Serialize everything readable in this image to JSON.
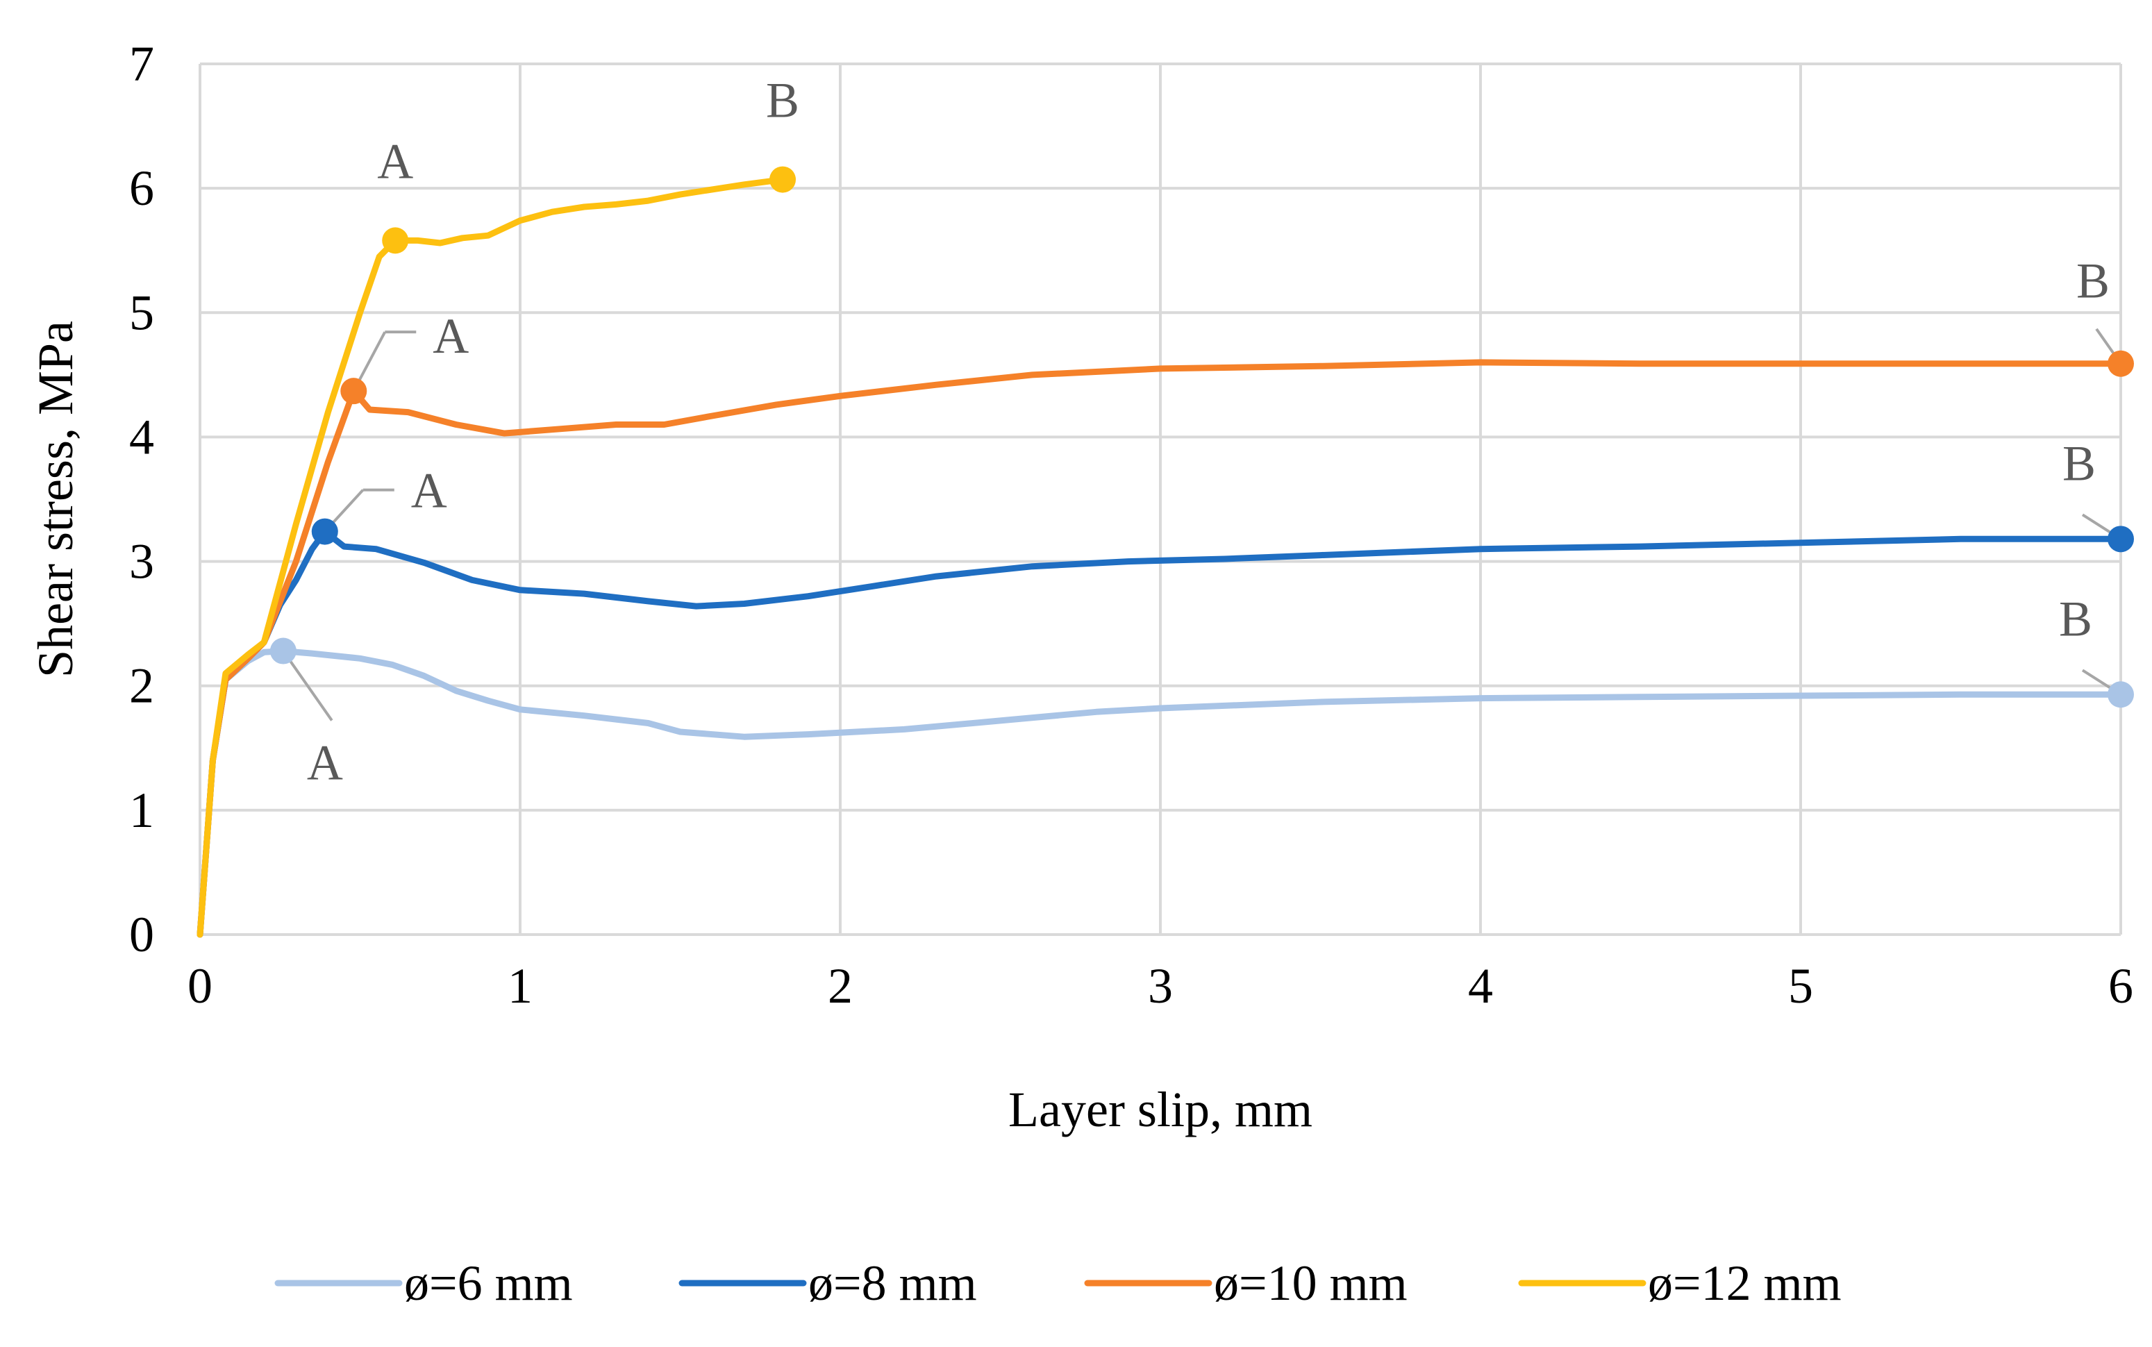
{
  "chart_data": {
    "type": "line",
    "title": "",
    "xlabel": "Layer slip, mm",
    "ylabel": "Shear stress, MPa",
    "xlim": [
      0,
      6
    ],
    "ylim": [
      0,
      7
    ],
    "xticks": [
      0,
      1,
      2,
      3,
      4,
      5,
      6
    ],
    "yticks": [
      0,
      1,
      2,
      3,
      4,
      5,
      6,
      7
    ],
    "xtick_labels": [
      "0",
      "1",
      "2",
      "3",
      "4",
      "5",
      "6"
    ],
    "ytick_labels": [
      "0",
      "1",
      "2",
      "3",
      "4",
      "5",
      "6",
      "7"
    ],
    "grid": true,
    "legend_position": "bottom",
    "series": [
      {
        "name": "ø=6 mm",
        "color": "#A9C4E6",
        "points": [
          [
            0,
            0
          ],
          [
            0.04,
            1.4
          ],
          [
            0.08,
            2.05
          ],
          [
            0.15,
            2.2
          ],
          [
            0.2,
            2.27
          ],
          [
            0.26,
            2.28
          ],
          [
            0.35,
            2.26
          ],
          [
            0.5,
            2.22
          ],
          [
            0.6,
            2.17
          ],
          [
            0.7,
            2.08
          ],
          [
            0.8,
            1.96
          ],
          [
            0.9,
            1.88
          ],
          [
            1.0,
            1.81
          ],
          [
            1.2,
            1.76
          ],
          [
            1.4,
            1.7
          ],
          [
            1.5,
            1.63
          ],
          [
            1.7,
            1.59
          ],
          [
            1.9,
            1.61
          ],
          [
            2.2,
            1.65
          ],
          [
            2.5,
            1.72
          ],
          [
            2.8,
            1.79
          ],
          [
            3.0,
            1.82
          ],
          [
            3.5,
            1.87
          ],
          [
            4.0,
            1.9
          ],
          [
            4.5,
            1.91
          ],
          [
            5.0,
            1.92
          ],
          [
            5.5,
            1.93
          ],
          [
            6.0,
            1.93
          ]
        ],
        "markers": [
          {
            "label": "A",
            "x": 0.26,
            "y": 2.28
          },
          {
            "label": "B",
            "x": 6.0,
            "y": 1.93
          }
        ]
      },
      {
        "name": "ø=8 mm",
        "color": "#1F6EC2",
        "points": [
          [
            0,
            0
          ],
          [
            0.04,
            1.4
          ],
          [
            0.08,
            2.05
          ],
          [
            0.15,
            2.22
          ],
          [
            0.2,
            2.35
          ],
          [
            0.25,
            2.65
          ],
          [
            0.3,
            2.85
          ],
          [
            0.35,
            3.1
          ],
          [
            0.39,
            3.24
          ],
          [
            0.45,
            3.12
          ],
          [
            0.55,
            3.1
          ],
          [
            0.7,
            2.99
          ],
          [
            0.85,
            2.85
          ],
          [
            1.0,
            2.77
          ],
          [
            1.2,
            2.74
          ],
          [
            1.4,
            2.68
          ],
          [
            1.55,
            2.64
          ],
          [
            1.7,
            2.66
          ],
          [
            1.9,
            2.72
          ],
          [
            2.1,
            2.8
          ],
          [
            2.3,
            2.88
          ],
          [
            2.6,
            2.96
          ],
          [
            2.9,
            3.0
          ],
          [
            3.2,
            3.02
          ],
          [
            3.5,
            3.05
          ],
          [
            4.0,
            3.1
          ],
          [
            4.5,
            3.12
          ],
          [
            5.0,
            3.15
          ],
          [
            5.5,
            3.18
          ],
          [
            6.0,
            3.18
          ]
        ],
        "markers": [
          {
            "label": "A",
            "x": 0.39,
            "y": 3.24
          },
          {
            "label": "B",
            "x": 6.0,
            "y": 3.18
          }
        ]
      },
      {
        "name": "ø=10 mm",
        "color": "#F58129",
        "points": [
          [
            0,
            0
          ],
          [
            0.04,
            1.4
          ],
          [
            0.08,
            2.05
          ],
          [
            0.15,
            2.22
          ],
          [
            0.2,
            2.35
          ],
          [
            0.3,
            3.0
          ],
          [
            0.4,
            3.8
          ],
          [
            0.48,
            4.37
          ],
          [
            0.53,
            4.22
          ],
          [
            0.65,
            4.2
          ],
          [
            0.8,
            4.1
          ],
          [
            0.95,
            4.03
          ],
          [
            1.1,
            4.06
          ],
          [
            1.3,
            4.1
          ],
          [
            1.45,
            4.1
          ],
          [
            1.6,
            4.17
          ],
          [
            1.8,
            4.26
          ],
          [
            2.0,
            4.33
          ],
          [
            2.3,
            4.42
          ],
          [
            2.6,
            4.5
          ],
          [
            3.0,
            4.55
          ],
          [
            3.5,
            4.57
          ],
          [
            4.0,
            4.6
          ],
          [
            4.5,
            4.59
          ],
          [
            5.0,
            4.59
          ],
          [
            5.5,
            4.59
          ],
          [
            6.0,
            4.59
          ]
        ],
        "markers": [
          {
            "label": "A",
            "x": 0.48,
            "y": 4.37
          },
          {
            "label": "B",
            "x": 6.0,
            "y": 4.59
          }
        ]
      },
      {
        "name": "ø=12 mm",
        "color": "#FDC010",
        "points": [
          [
            0,
            0
          ],
          [
            0.04,
            1.4
          ],
          [
            0.08,
            2.1
          ],
          [
            0.15,
            2.25
          ],
          [
            0.2,
            2.35
          ],
          [
            0.3,
            3.3
          ],
          [
            0.4,
            4.2
          ],
          [
            0.5,
            5.0
          ],
          [
            0.56,
            5.45
          ],
          [
            0.61,
            5.58
          ],
          [
            0.68,
            5.58
          ],
          [
            0.75,
            5.56
          ],
          [
            0.82,
            5.6
          ],
          [
            0.9,
            5.62
          ],
          [
            1.0,
            5.74
          ],
          [
            1.1,
            5.81
          ],
          [
            1.2,
            5.85
          ],
          [
            1.3,
            5.87
          ],
          [
            1.4,
            5.9
          ],
          [
            1.5,
            5.95
          ],
          [
            1.6,
            5.99
          ],
          [
            1.7,
            6.03
          ],
          [
            1.82,
            6.07
          ]
        ],
        "markers": [
          {
            "label": "A",
            "x": 0.61,
            "y": 5.58
          },
          {
            "label": "B",
            "x": 1.82,
            "y": 6.07
          }
        ]
      }
    ]
  }
}
